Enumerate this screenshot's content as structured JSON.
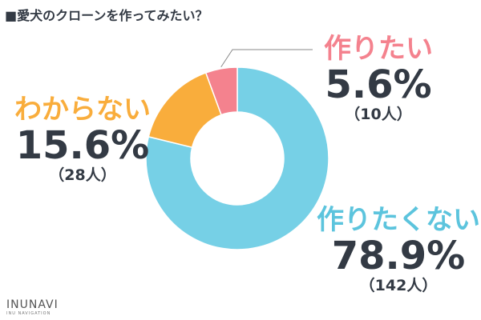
{
  "chart_data": {
    "type": "pie",
    "title": "■愛犬のクローンを作ってみたい？",
    "series": [
      {
        "key": "dontwant",
        "name": "作りたくない",
        "value": 78.9,
        "value_label": "78.9%",
        "count_label": "（142人）",
        "color": "#76d0e6"
      },
      {
        "key": "dontknow",
        "name": "わからない",
        "value": 15.6,
        "value_label": "15.6%",
        "count_label": "（28人）",
        "color": "#f9ad3c"
      },
      {
        "key": "want",
        "name": "作りたい",
        "value": 5.6,
        "value_label": "5.6%",
        "count_label": "（10人）",
        "color": "#f4828e"
      }
    ]
  },
  "labels": {
    "want": {
      "name": "作りたい",
      "value": "5.6%",
      "count": "（10人）"
    },
    "dontknow": {
      "name": "わからない",
      "value": "15.6%",
      "count": "（28人）"
    },
    "dontwant": {
      "name": "作りたくない",
      "value": "78.9%",
      "count": "（142人）"
    }
  },
  "logo": {
    "main": "INUNAVI",
    "sub": "INU NAVIGATION"
  }
}
